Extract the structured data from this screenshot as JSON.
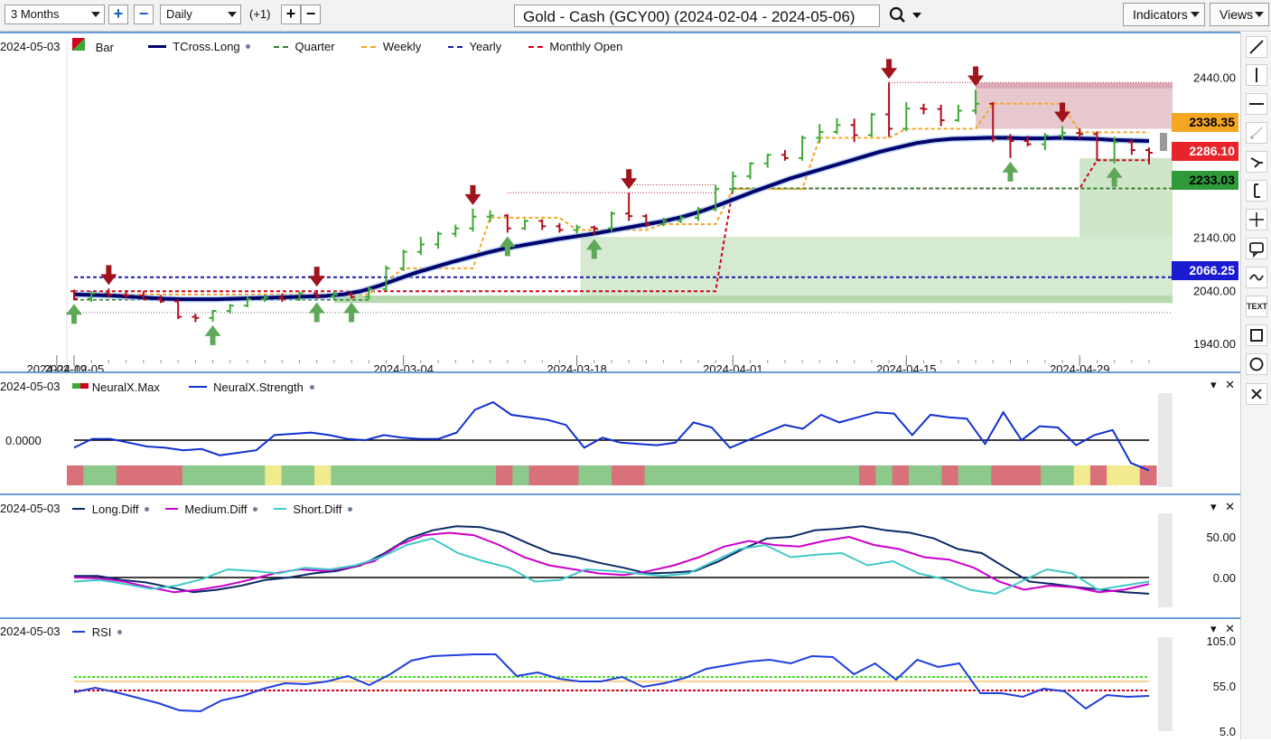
{
  "toolbar": {
    "range": "3 Months",
    "interval": "Daily",
    "offset": "(+1)",
    "title": "Gold - Cash (GCY00) (2024-02-04 - 2024-05-06)",
    "indicators_label": "Indicators",
    "views_label": "Views"
  },
  "right_tools": [
    "line-tool-icon",
    "vertical-line-icon",
    "horizontal-line-icon",
    "trend-tool-icon",
    "arrow-tool-icon",
    "fib-tool-icon",
    "crosshair-icon",
    "comment-icon",
    "wave-icon",
    "text-tool-icon",
    "rectangle-icon",
    "circle-icon",
    "close-icon"
  ],
  "right_tools_text": {
    "text_tool": "TEXT"
  },
  "colors": {
    "up": "#3da935",
    "down": "#b0101a",
    "tcross": "#00006b",
    "quarter": "#2e7d32",
    "weekly": "#f5a623",
    "yearly": "#1a1aa8",
    "monthly": "#d0021b",
    "neural_line": "#1030d0",
    "long_diff": "#0a2a66",
    "medium_diff": "#cc00cc",
    "short_diff": "#40c8c8",
    "rsi": "#1e40e0"
  },
  "main": {
    "date_label": "2024-05-03",
    "legend": {
      "bar": "Bar",
      "tcross": "TCross.Long",
      "quarter": "Quarter",
      "weekly": "Weekly",
      "yearly": "Yearly",
      "monthly": "Monthly Open"
    },
    "price_axis": [
      "2440.00",
      "2140.00",
      "2040.00",
      "1940.00"
    ],
    "x_ticks": [
      "2024-02-05",
      "2024-02-19",
      "2024-03-04",
      "2024-03-18",
      "2024-04-01",
      "2024-04-15",
      "2024-04-29"
    ],
    "price_labels": {
      "weekly": "2338.35",
      "monthly": "2286.10",
      "quarter": "2233.03",
      "yearly": "2066.25"
    }
  },
  "neural": {
    "date_label": "2024-05-03",
    "legend": {
      "max": "NeuralX.Max",
      "strength": "NeuralX.Strength"
    },
    "axis": [
      "0.0000"
    ]
  },
  "diff": {
    "date_label": "2024-05-03",
    "legend": {
      "long": "Long.Diff",
      "medium": "Medium.Diff",
      "short": "Short.Diff"
    },
    "axis": [
      "50.00",
      "0.00"
    ]
  },
  "rsi": {
    "date_label": "2024-05-03",
    "legend": {
      "rsi": "RSI"
    },
    "axis": [
      "105.0",
      "55.0",
      "5.0"
    ]
  },
  "chart_data": [
    {
      "type": "ohlc",
      "title": "Gold - Cash (GCY00) (2024-02-04 - 2024-05-06)",
      "y_axis_ticks": [
        2440,
        2140,
        2040,
        1940
      ],
      "ylim": [
        1920,
        2490
      ],
      "x_ticks": [
        "2024-02-05",
        "2024-02-19",
        "2024-03-04",
        "2024-03-18",
        "2024-04-01",
        "2024-04-15",
        "2024-04-29"
      ],
      "bars": [
        {
          "d": "2024-02-05",
          "o": 2040,
          "h": 2043,
          "l": 2023,
          "c": 2026
        },
        {
          "d": "2024-02-06",
          "o": 2026,
          "h": 2040,
          "l": 2020,
          "c": 2036
        },
        {
          "d": "2024-02-07",
          "o": 2036,
          "h": 2045,
          "l": 2028,
          "c": 2033
        },
        {
          "d": "2024-02-08",
          "o": 2033,
          "h": 2042,
          "l": 2028,
          "c": 2032
        },
        {
          "d": "2024-02-09",
          "o": 2032,
          "h": 2040,
          "l": 2024,
          "c": 2025
        },
        {
          "d": "2024-02-12",
          "o": 2025,
          "h": 2033,
          "l": 2018,
          "c": 2021
        },
        {
          "d": "2024-02-13",
          "o": 2021,
          "h": 2025,
          "l": 1988,
          "c": 1992
        },
        {
          "d": "2024-02-14",
          "o": 1992,
          "h": 1998,
          "l": 1982,
          "c": 1990
        },
        {
          "d": "2024-02-15",
          "o": 1990,
          "h": 2005,
          "l": 1983,
          "c": 2003
        },
        {
          "d": "2024-02-16",
          "o": 2003,
          "h": 2016,
          "l": 1998,
          "c": 2013
        },
        {
          "d": "2024-02-20",
          "o": 2013,
          "h": 2030,
          "l": 2010,
          "c": 2025
        },
        {
          "d": "2024-02-21",
          "o": 2025,
          "h": 2034,
          "l": 2020,
          "c": 2028
        },
        {
          "d": "2024-02-22",
          "o": 2028,
          "h": 2036,
          "l": 2020,
          "c": 2025
        },
        {
          "d": "2024-02-23",
          "o": 2025,
          "h": 2040,
          "l": 2022,
          "c": 2036
        },
        {
          "d": "2024-02-26",
          "o": 2036,
          "h": 2042,
          "l": 2026,
          "c": 2031
        },
        {
          "d": "2024-02-27",
          "o": 2031,
          "h": 2040,
          "l": 2025,
          "c": 2034
        },
        {
          "d": "2024-02-28",
          "o": 2034,
          "h": 2038,
          "l": 2026,
          "c": 2029
        },
        {
          "d": "2024-02-29",
          "o": 2029,
          "h": 2048,
          "l": 2025,
          "c": 2044
        },
        {
          "d": "2024-03-01",
          "o": 2044,
          "h": 2088,
          "l": 2040,
          "c": 2083
        },
        {
          "d": "2024-03-04",
          "o": 2083,
          "h": 2118,
          "l": 2078,
          "c": 2114
        },
        {
          "d": "2024-03-05",
          "o": 2114,
          "h": 2142,
          "l": 2108,
          "c": 2128
        },
        {
          "d": "2024-03-06",
          "o": 2128,
          "h": 2152,
          "l": 2120,
          "c": 2148
        },
        {
          "d": "2024-03-07",
          "o": 2148,
          "h": 2165,
          "l": 2142,
          "c": 2158
        },
        {
          "d": "2024-03-08",
          "o": 2158,
          "h": 2195,
          "l": 2152,
          "c": 2180
        },
        {
          "d": "2024-03-11",
          "o": 2180,
          "h": 2192,
          "l": 2170,
          "c": 2182
        },
        {
          "d": "2024-03-12",
          "o": 2182,
          "h": 2185,
          "l": 2150,
          "c": 2158
        },
        {
          "d": "2024-03-13",
          "o": 2158,
          "h": 2175,
          "l": 2155,
          "c": 2172
        },
        {
          "d": "2024-03-14",
          "o": 2172,
          "h": 2175,
          "l": 2155,
          "c": 2162
        },
        {
          "d": "2024-03-15",
          "o": 2162,
          "h": 2168,
          "l": 2150,
          "c": 2155
        },
        {
          "d": "2024-03-18",
          "o": 2155,
          "h": 2165,
          "l": 2148,
          "c": 2160
        },
        {
          "d": "2024-03-19",
          "o": 2160,
          "h": 2163,
          "l": 2145,
          "c": 2158
        },
        {
          "d": "2024-03-20",
          "o": 2158,
          "h": 2190,
          "l": 2152,
          "c": 2186
        },
        {
          "d": "2024-03-21",
          "o": 2186,
          "h": 2225,
          "l": 2172,
          "c": 2181
        },
        {
          "d": "2024-03-22",
          "o": 2181,
          "h": 2185,
          "l": 2160,
          "c": 2166
        },
        {
          "d": "2024-03-25",
          "o": 2166,
          "h": 2178,
          "l": 2162,
          "c": 2172
        },
        {
          "d": "2024-03-26",
          "o": 2172,
          "h": 2182,
          "l": 2168,
          "c": 2178
        },
        {
          "d": "2024-03-27",
          "o": 2178,
          "h": 2198,
          "l": 2172,
          "c": 2194
        },
        {
          "d": "2024-03-28",
          "o": 2194,
          "h": 2240,
          "l": 2190,
          "c": 2232
        },
        {
          "d": "2024-04-01",
          "o": 2232,
          "h": 2265,
          "l": 2226,
          "c": 2256
        },
        {
          "d": "2024-04-02",
          "o": 2256,
          "h": 2282,
          "l": 2250,
          "c": 2280
        },
        {
          "d": "2024-04-03",
          "o": 2280,
          "h": 2298,
          "l": 2272,
          "c": 2296
        },
        {
          "d": "2024-04-04",
          "o": 2296,
          "h": 2305,
          "l": 2285,
          "c": 2290
        },
        {
          "d": "2024-04-05",
          "o": 2290,
          "h": 2332,
          "l": 2285,
          "c": 2328
        },
        {
          "d": "2024-04-08",
          "o": 2328,
          "h": 2354,
          "l": 2318,
          "c": 2339
        },
        {
          "d": "2024-04-09",
          "o": 2339,
          "h": 2365,
          "l": 2335,
          "c": 2352
        },
        {
          "d": "2024-04-10",
          "o": 2352,
          "h": 2364,
          "l": 2320,
          "c": 2333
        },
        {
          "d": "2024-04-11",
          "o": 2333,
          "h": 2375,
          "l": 2330,
          "c": 2372
        },
        {
          "d": "2024-04-12",
          "o": 2372,
          "h": 2432,
          "l": 2330,
          "c": 2345
        },
        {
          "d": "2024-04-15",
          "o": 2345,
          "h": 2395,
          "l": 2340,
          "c": 2383
        },
        {
          "d": "2024-04-16",
          "o": 2383,
          "h": 2392,
          "l": 2372,
          "c": 2382
        },
        {
          "d": "2024-04-17",
          "o": 2382,
          "h": 2390,
          "l": 2350,
          "c": 2361
        },
        {
          "d": "2024-04-18",
          "o": 2361,
          "h": 2390,
          "l": 2358,
          "c": 2379
        },
        {
          "d": "2024-04-19",
          "o": 2379,
          "h": 2418,
          "l": 2372,
          "c": 2392
        },
        {
          "d": "2024-04-22",
          "o": 2392,
          "h": 2395,
          "l": 2320,
          "c": 2327
        },
        {
          "d": "2024-04-23",
          "o": 2327,
          "h": 2335,
          "l": 2290,
          "c": 2322
        },
        {
          "d": "2024-04-24",
          "o": 2322,
          "h": 2332,
          "l": 2312,
          "c": 2316
        },
        {
          "d": "2024-04-25",
          "o": 2316,
          "h": 2337,
          "l": 2305,
          "c": 2332
        },
        {
          "d": "2024-04-26",
          "o": 2332,
          "h": 2350,
          "l": 2325,
          "c": 2337
        },
        {
          "d": "2024-04-29",
          "o": 2337,
          "h": 2346,
          "l": 2325,
          "c": 2335
        },
        {
          "d": "2024-04-30",
          "o": 2335,
          "h": 2340,
          "l": 2285,
          "c": 2286
        },
        {
          "d": "2024-05-01",
          "o": 2286,
          "h": 2330,
          "l": 2280,
          "c": 2320
        },
        {
          "d": "2024-05-02",
          "o": 2320,
          "h": 2325,
          "l": 2296,
          "c": 2305
        },
        {
          "d": "2024-05-03",
          "o": 2305,
          "h": 2310,
          "l": 2278,
          "c": 2300
        }
      ],
      "tcross_long": [
        2034,
        2033,
        2032,
        2030,
        2028,
        2026,
        2025,
        2025,
        2025,
        2026,
        2027,
        2028,
        2029,
        2030,
        2031,
        2034,
        2040,
        2050,
        2062,
        2074,
        2084,
        2094,
        2103,
        2112,
        2120,
        2126,
        2132,
        2138,
        2143,
        2148,
        2154,
        2160,
        2166,
        2172,
        2180,
        2190,
        2202,
        2215,
        2228,
        2240,
        2252,
        2262,
        2272,
        2282,
        2292,
        2302,
        2310,
        2318,
        2323,
        2326,
        2327,
        2328,
        2328,
        2327,
        2327,
        2328,
        2327,
        2326,
        2324,
        2323,
        2322
      ],
      "levels": {
        "weekly": 2338.35,
        "monthly_open": 2286.1,
        "quarter": 2233.03,
        "yearly": 2066.25
      },
      "signals": {
        "down": [
          "2024-02-07",
          "2024-02-26",
          "2024-03-08",
          "2024-03-21",
          "2024-04-12",
          "2024-04-19",
          "2024-04-26"
        ],
        "up": [
          "2024-02-05",
          "2024-02-15",
          "2024-02-26",
          "2024-02-28",
          "2024-03-12",
          "2024-03-19",
          "2024-04-23",
          "2024-05-01"
        ]
      }
    },
    {
      "type": "line",
      "name": "NeuralX.Strength",
      "y_axis_ticks": [
        0
      ],
      "values": [
        -0.3,
        0.05,
        0.05,
        -0.1,
        -0.25,
        -0.3,
        -0.4,
        -0.35,
        -0.6,
        -0.5,
        -0.4,
        0.2,
        0.25,
        0.3,
        0.2,
        0.05,
        0.0,
        0.2,
        0.1,
        0.05,
        0.05,
        0.3,
        1.2,
        1.5,
        1.0,
        0.9,
        0.8,
        0.6,
        -0.3,
        0.1,
        -0.1,
        -0.15,
        -0.2,
        -0.1,
        0.7,
        0.5,
        -0.3,
        0.0,
        0.3,
        0.6,
        0.45,
        1.0,
        0.7,
        0.9,
        1.1,
        1.05,
        0.2,
        1.0,
        0.9,
        0.85,
        -0.15,
        1.1,
        0.0,
        0.55,
        0.5,
        -0.2,
        0.2,
        0.4,
        -0.9,
        -1.2
      ],
      "band_states": [
        "red",
        "green",
        "green",
        "red",
        "red",
        "red",
        "red",
        "green",
        "green",
        "green",
        "green",
        "green",
        "yellow",
        "green",
        "green",
        "yellow",
        "green",
        "green",
        "green",
        "green",
        "green",
        "green",
        "green",
        "green",
        "green",
        "green",
        "red",
        "green",
        "red",
        "red",
        "red",
        "green",
        "green",
        "red",
        "red",
        "green",
        "green",
        "green",
        "green",
        "green",
        "green",
        "green",
        "green",
        "green",
        "green",
        "green",
        "green",
        "green",
        "red",
        "green",
        "red",
        "green",
        "green",
        "red",
        "green",
        "green",
        "red",
        "red",
        "red",
        "green",
        "green",
        "yellow",
        "red",
        "yellow",
        "yellow",
        "red"
      ]
    },
    {
      "type": "line",
      "series": [
        {
          "name": "Long.Diff",
          "values": [
            2,
            2,
            -3,
            -6,
            -12,
            -18,
            -15,
            -10,
            -3,
            0,
            5,
            8,
            15,
            30,
            48,
            58,
            63,
            62,
            55,
            42,
            30,
            25,
            18,
            12,
            5,
            6,
            8,
            20,
            35,
            48,
            50,
            58,
            60,
            63,
            58,
            55,
            48,
            35,
            30,
            12,
            -5,
            -8,
            -12,
            -15,
            -18,
            -20
          ]
        },
        {
          "name": "Medium.Diff",
          "values": [
            0,
            -1,
            -5,
            -12,
            -18,
            -15,
            -10,
            -3,
            5,
            10,
            8,
            12,
            20,
            40,
            52,
            55,
            52,
            40,
            25,
            15,
            10,
            5,
            3,
            8,
            15,
            25,
            38,
            45,
            40,
            38,
            45,
            50,
            40,
            35,
            25,
            22,
            12,
            -5,
            -15,
            -10,
            -12,
            -18,
            -15,
            -8
          ]
        },
        {
          "name": "Short.Diff",
          "values": [
            -5,
            -3,
            -8,
            -14,
            -10,
            -2,
            10,
            8,
            5,
            12,
            10,
            15,
            25,
            40,
            48,
            30,
            20,
            12,
            -5,
            -3,
            10,
            8,
            5,
            2,
            5,
            20,
            35,
            40,
            25,
            28,
            30,
            15,
            20,
            5,
            -2,
            -15,
            -20,
            -5,
            10,
            5,
            -15,
            -10,
            -5
          ]
        }
      ],
      "y_axis_ticks": [
        50,
        0
      ]
    },
    {
      "type": "line",
      "name": "RSI",
      "values": [
        48,
        53,
        48,
        42,
        36,
        28,
        27,
        39,
        44,
        52,
        58,
        57,
        60,
        66,
        56,
        68,
        83,
        88,
        89,
        90,
        90,
        66,
        70,
        63,
        60,
        60,
        65,
        54,
        58,
        64,
        74,
        78,
        82,
        84,
        80,
        88,
        87,
        68,
        80,
        62,
        84,
        76,
        80,
        47,
        47,
        43,
        52,
        49,
        30,
        45,
        43,
        44
      ],
      "y_axis_ticks": [
        105,
        55,
        5
      ],
      "ylim": [
        5,
        105
      ],
      "reference_lines": [
        {
          "value": 65,
          "color": "#44dd22"
        },
        {
          "value": 60,
          "color": "#f5a623"
        },
        {
          "value": 50,
          "color": "#d0021b"
        }
      ]
    }
  ]
}
